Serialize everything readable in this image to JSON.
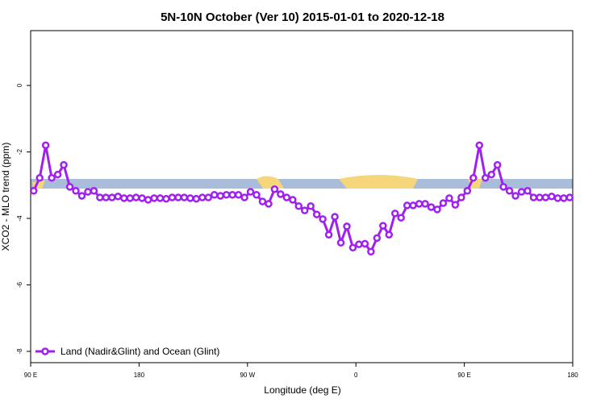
{
  "chart_data": {
    "type": "line",
    "title": "5N-10N October (Ver 10)   2015-01-01 to 2020-12-18",
    "x_label": "Longitude (deg E)",
    "y_label": "XCO2 - MLO trend (ppm)",
    "xlim": [
      90,
      540
    ],
    "xticks": [
      {
        "value": 90,
        "label": "90 E"
      },
      {
        "value": 180,
        "label": "180"
      },
      {
        "value": 270,
        "label": "90 W"
      },
      {
        "value": 360,
        "label": "0"
      },
      {
        "value": 450,
        "label": "90 E"
      },
      {
        "value": 540,
        "label": "180"
      }
    ],
    "ylim": [
      -8.34,
      1.65
    ],
    "yticks": [
      0,
      -2,
      -4,
      -6,
      -8
    ],
    "legend": "bottom-left",
    "x": [
      92.5,
      97.5,
      102.5,
      107.5,
      112.5,
      117.5,
      122.5,
      127.5,
      132.5,
      137.5,
      142.5,
      147.5,
      152.5,
      157.5,
      162.5,
      167.5,
      172.5,
      177.5,
      182.5,
      187.5,
      192.5,
      197.5,
      202.5,
      207.5,
      212.5,
      217.5,
      222.5,
      227.5,
      232.5,
      237.5,
      242.5,
      247.5,
      252.5,
      257.5,
      262.5,
      267.5,
      272.5,
      277.5,
      282.5,
      287.5,
      292.5,
      297.5,
      302.5,
      307.5,
      312.5,
      317.5,
      322.5,
      327.5,
      332.5,
      337.5,
      342.5,
      347.5,
      352.5,
      357.5,
      362.5,
      367.5,
      372.5,
      377.5,
      382.5,
      387.5,
      392.5,
      397.5,
      402.5,
      407.5,
      412.5,
      417.5,
      422.5,
      427.5,
      432.5,
      437.5,
      442.5,
      447.5,
      452.5,
      457.5,
      462.5,
      467.5,
      472.5,
      477.5,
      482.5,
      487.5,
      492.5,
      497.5,
      502.5,
      507.5,
      512.5,
      517.5,
      522.5,
      527.5,
      532.5,
      537.5
    ],
    "series": [
      {
        "name": "Land (Nadir&Glint) and Ocean (Glint)",
        "color": "#a020f0",
        "values": [
          -3.17,
          -2.78,
          -1.8,
          -2.78,
          -2.68,
          -2.39,
          -3.05,
          -3.17,
          -3.32,
          -3.2,
          -3.17,
          -3.37,
          -3.37,
          -3.37,
          -3.34,
          -3.39,
          -3.39,
          -3.37,
          -3.39,
          -3.44,
          -3.39,
          -3.39,
          -3.41,
          -3.37,
          -3.37,
          -3.37,
          -3.39,
          -3.41,
          -3.37,
          -3.37,
          -3.29,
          -3.32,
          -3.29,
          -3.29,
          -3.29,
          -3.37,
          -3.2,
          -3.29,
          -3.49,
          -3.56,
          -3.12,
          -3.27,
          -3.37,
          -3.44,
          -3.63,
          -3.76,
          -3.63,
          -3.88,
          -4.02,
          -4.49,
          -3.95,
          -4.73,
          -4.24,
          -4.88,
          -4.78,
          -4.76,
          -5.0,
          -4.59,
          -4.22,
          -4.49,
          -3.85,
          -3.98,
          -3.61,
          -3.61,
          -3.56,
          -3.56,
          -3.66,
          -3.73,
          -3.54,
          -3.39,
          -3.59,
          -3.37,
          -3.17,
          -2.78,
          -1.8,
          -2.78,
          -2.68,
          -2.39,
          -3.05,
          -3.17,
          -3.32,
          -3.2,
          -3.17,
          -3.37,
          -3.37,
          -3.37,
          -3.34,
          -3.39,
          -3.39,
          -3.37
        ]
      }
    ]
  }
}
